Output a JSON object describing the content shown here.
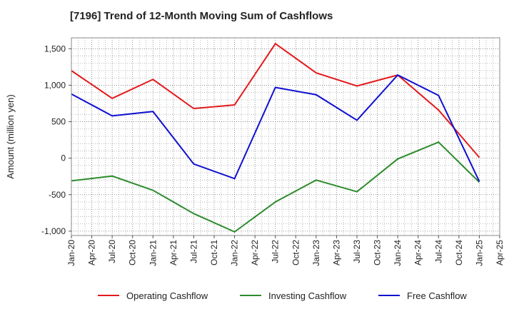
{
  "chart_data": {
    "type": "line",
    "title": "[7196]  Trend of 12-Month Moving Sum of Cashflows",
    "xlabel": "",
    "ylabel": "Amount (million yen)",
    "ylim": [
      -1060,
      1650
    ],
    "yticks": [
      1500,
      1000,
      500,
      0,
      -500,
      -1000
    ],
    "ytick_labels": [
      "1,500",
      "1,000",
      "500",
      "0",
      "-500",
      "-1,000"
    ],
    "categories": [
      "Jan-20",
      "Apr-20",
      "Jul-20",
      "Oct-20",
      "Jan-21",
      "Apr-21",
      "Jul-21",
      "Oct-21",
      "Jan-22",
      "Apr-22",
      "Jul-22",
      "Oct-22",
      "Jan-23",
      "Apr-23",
      "Jul-23",
      "Oct-23",
      "Jan-24",
      "Apr-24",
      "Jul-24",
      "Oct-24",
      "Jan-25",
      "Apr-25"
    ],
    "grid": true,
    "legend_position": "bottom",
    "series": [
      {
        "name": "Operating Cashflow",
        "color": "#e31a1c",
        "points": [
          [
            "Jan-20",
            1200
          ],
          [
            "Jul-20",
            820
          ],
          [
            "Jan-21",
            1080
          ],
          [
            "Jul-21",
            680
          ],
          [
            "Jan-22",
            730
          ],
          [
            "Jul-22",
            1570
          ],
          [
            "Jan-23",
            1170
          ],
          [
            "Jul-23",
            990
          ],
          [
            "Jan-24",
            1140
          ],
          [
            "Jul-24",
            660
          ],
          [
            "Jan-25",
            10
          ]
        ]
      },
      {
        "name": "Investing Cashflow",
        "color": "#2e8b2e",
        "points": [
          [
            "Jan-20",
            -310
          ],
          [
            "Jul-20",
            -245
          ],
          [
            "Jan-21",
            -440
          ],
          [
            "Jul-21",
            -760
          ],
          [
            "Jan-22",
            -1010
          ],
          [
            "Jul-22",
            -600
          ],
          [
            "Jan-23",
            -300
          ],
          [
            "Jul-23",
            -460
          ],
          [
            "Jan-24",
            -10
          ],
          [
            "Jul-24",
            220
          ],
          [
            "Jan-25",
            -330
          ]
        ]
      },
      {
        "name": "Free Cashflow",
        "color": "#1010d0",
        "points": [
          [
            "Jan-20",
            880
          ],
          [
            "Jul-20",
            580
          ],
          [
            "Jan-21",
            640
          ],
          [
            "Jul-21",
            -80
          ],
          [
            "Jan-22",
            -280
          ],
          [
            "Jul-22",
            970
          ],
          [
            "Jan-23",
            870
          ],
          [
            "Jul-23",
            520
          ],
          [
            "Jan-24",
            1140
          ],
          [
            "Jul-24",
            860
          ],
          [
            "Jan-25",
            -320
          ]
        ]
      }
    ]
  }
}
